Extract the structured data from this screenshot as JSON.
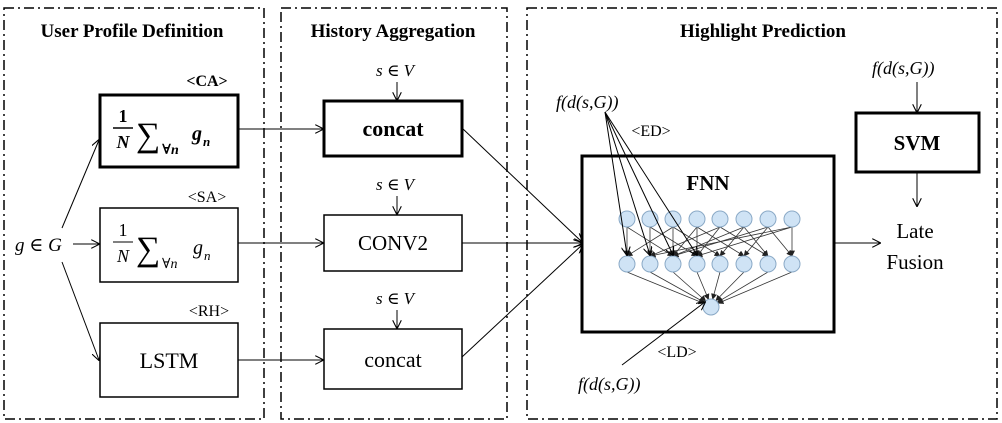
{
  "panels": {
    "user_profile": "User Profile Definition",
    "history": "History Aggregation",
    "highlight": "Highlight Prediction"
  },
  "input": {
    "label": "g ∈ G"
  },
  "profile": {
    "ca_tag": "<CA>",
    "sa_tag": "<SA>",
    "rh_tag": "<RH>",
    "frac_num": "1",
    "frac_den": "N",
    "sum_sym": "∑",
    "sum_sub": "∀n",
    "sum_term": "g",
    "sum_term_sub": "n",
    "lstm": "LSTM"
  },
  "history": {
    "input": "s ∈ V",
    "concat_top": "concat",
    "conv": "CONV2",
    "concat_bottom": "concat"
  },
  "prediction": {
    "feature_top": "f(d(s,G))",
    "ed_tag": "<ED>",
    "fnn": "FNN",
    "ld_tag": "<LD>",
    "feature_bottom": "f(d(s,G))",
    "svm_input": "f(d(s,G))",
    "svm": "SVM",
    "late": "Late",
    "fusion": "Fusion"
  }
}
